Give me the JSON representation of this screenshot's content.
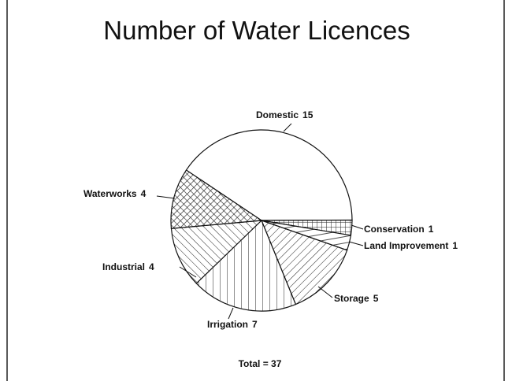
{
  "chart_data": {
    "type": "pie",
    "title": "Number of Water Licences",
    "categories": [
      "Domestic",
      "Conservation",
      "Land Improvement",
      "Storage",
      "Irrigation",
      "Industrial",
      "Waterworks"
    ],
    "values": [
      15,
      1,
      1,
      5,
      7,
      4,
      4
    ],
    "annotation": "Total = 37"
  }
}
